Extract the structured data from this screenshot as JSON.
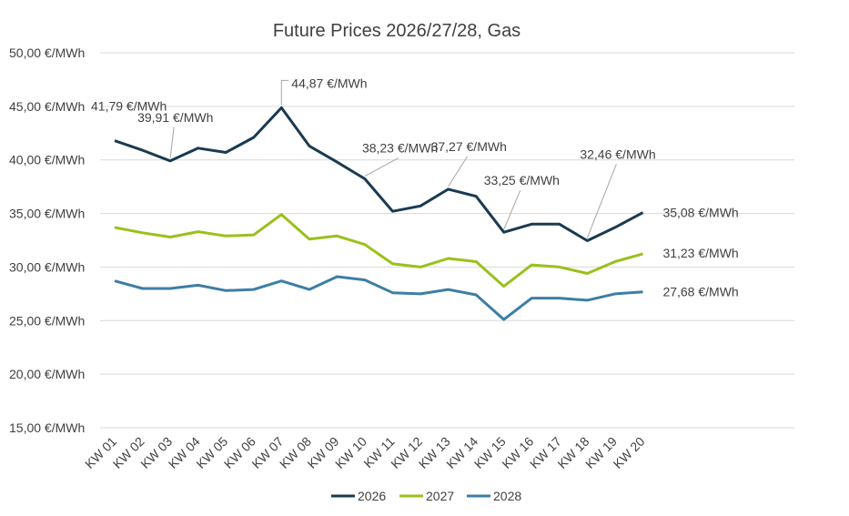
{
  "chart_data": {
    "type": "line",
    "title": "Future Prices 2026/27/28, Gas",
    "categories": [
      "KW 01",
      "KW 02",
      "KW 03",
      "KW 04",
      "KW 05",
      "KW 06",
      "KW 07",
      "KW 08",
      "KW 09",
      "KW 10",
      "KW 11",
      "KW 12",
      "KW 13",
      "KW 14",
      "KW 15",
      "KW 16",
      "KW 17",
      "KW 18",
      "KW 19",
      "KW 20"
    ],
    "ylim": [
      15,
      50
    ],
    "yticks": [
      "15,00 €/MWh",
      "20,00 €/MWh",
      "25,00 €/MWh",
      "30,00 €/MWh",
      "35,00 €/MWh",
      "40,00 €/MWh",
      "45,00 €/MWh",
      "50,00 €/MWh"
    ],
    "grid": true,
    "legend_position": "bottom",
    "series": [
      {
        "name": "2026",
        "color": "#1a3a50",
        "values": [
          41.79,
          40.9,
          39.91,
          41.1,
          40.7,
          42.1,
          44.87,
          41.3,
          39.8,
          38.23,
          35.2,
          35.7,
          37.27,
          36.6,
          33.25,
          34.0,
          34.0,
          32.46,
          33.7,
          35.08
        ]
      },
      {
        "name": "2027",
        "color": "#99c11b",
        "values": [
          33.7,
          33.2,
          32.8,
          33.3,
          32.9,
          33.0,
          34.9,
          32.6,
          32.9,
          32.1,
          30.3,
          30.0,
          30.8,
          30.5,
          28.2,
          30.2,
          30.0,
          29.4,
          30.5,
          31.23
        ]
      },
      {
        "name": "2028",
        "color": "#3d7ea6",
        "values": [
          28.7,
          28.0,
          28.0,
          28.3,
          27.8,
          27.9,
          28.7,
          27.9,
          29.1,
          28.8,
          27.6,
          27.5,
          27.9,
          27.4,
          25.1,
          27.1,
          27.1,
          26.9,
          27.5,
          27.68
        ]
      }
    ],
    "annotations": [
      {
        "series": "2026",
        "index": 0,
        "text": "41,79 €/MWh"
      },
      {
        "series": "2026",
        "index": 2,
        "text": "39,91 €/MWh"
      },
      {
        "series": "2026",
        "index": 6,
        "text": "44,87 €/MWh"
      },
      {
        "series": "2026",
        "index": 9,
        "text": "38,23 €/MWh"
      },
      {
        "series": "2026",
        "index": 12,
        "text": "37,27 €/MWh"
      },
      {
        "series": "2026",
        "index": 14,
        "text": "33,25 €/MWh"
      },
      {
        "series": "2026",
        "index": 17,
        "text": "32,46 €/MWh"
      },
      {
        "series": "2026",
        "index": 19,
        "text": "35,08 €/MWh"
      },
      {
        "series": "2027",
        "index": 19,
        "text": "31,23 €/MWh"
      },
      {
        "series": "2028",
        "index": 19,
        "text": "27,68 €/MWh"
      }
    ]
  }
}
